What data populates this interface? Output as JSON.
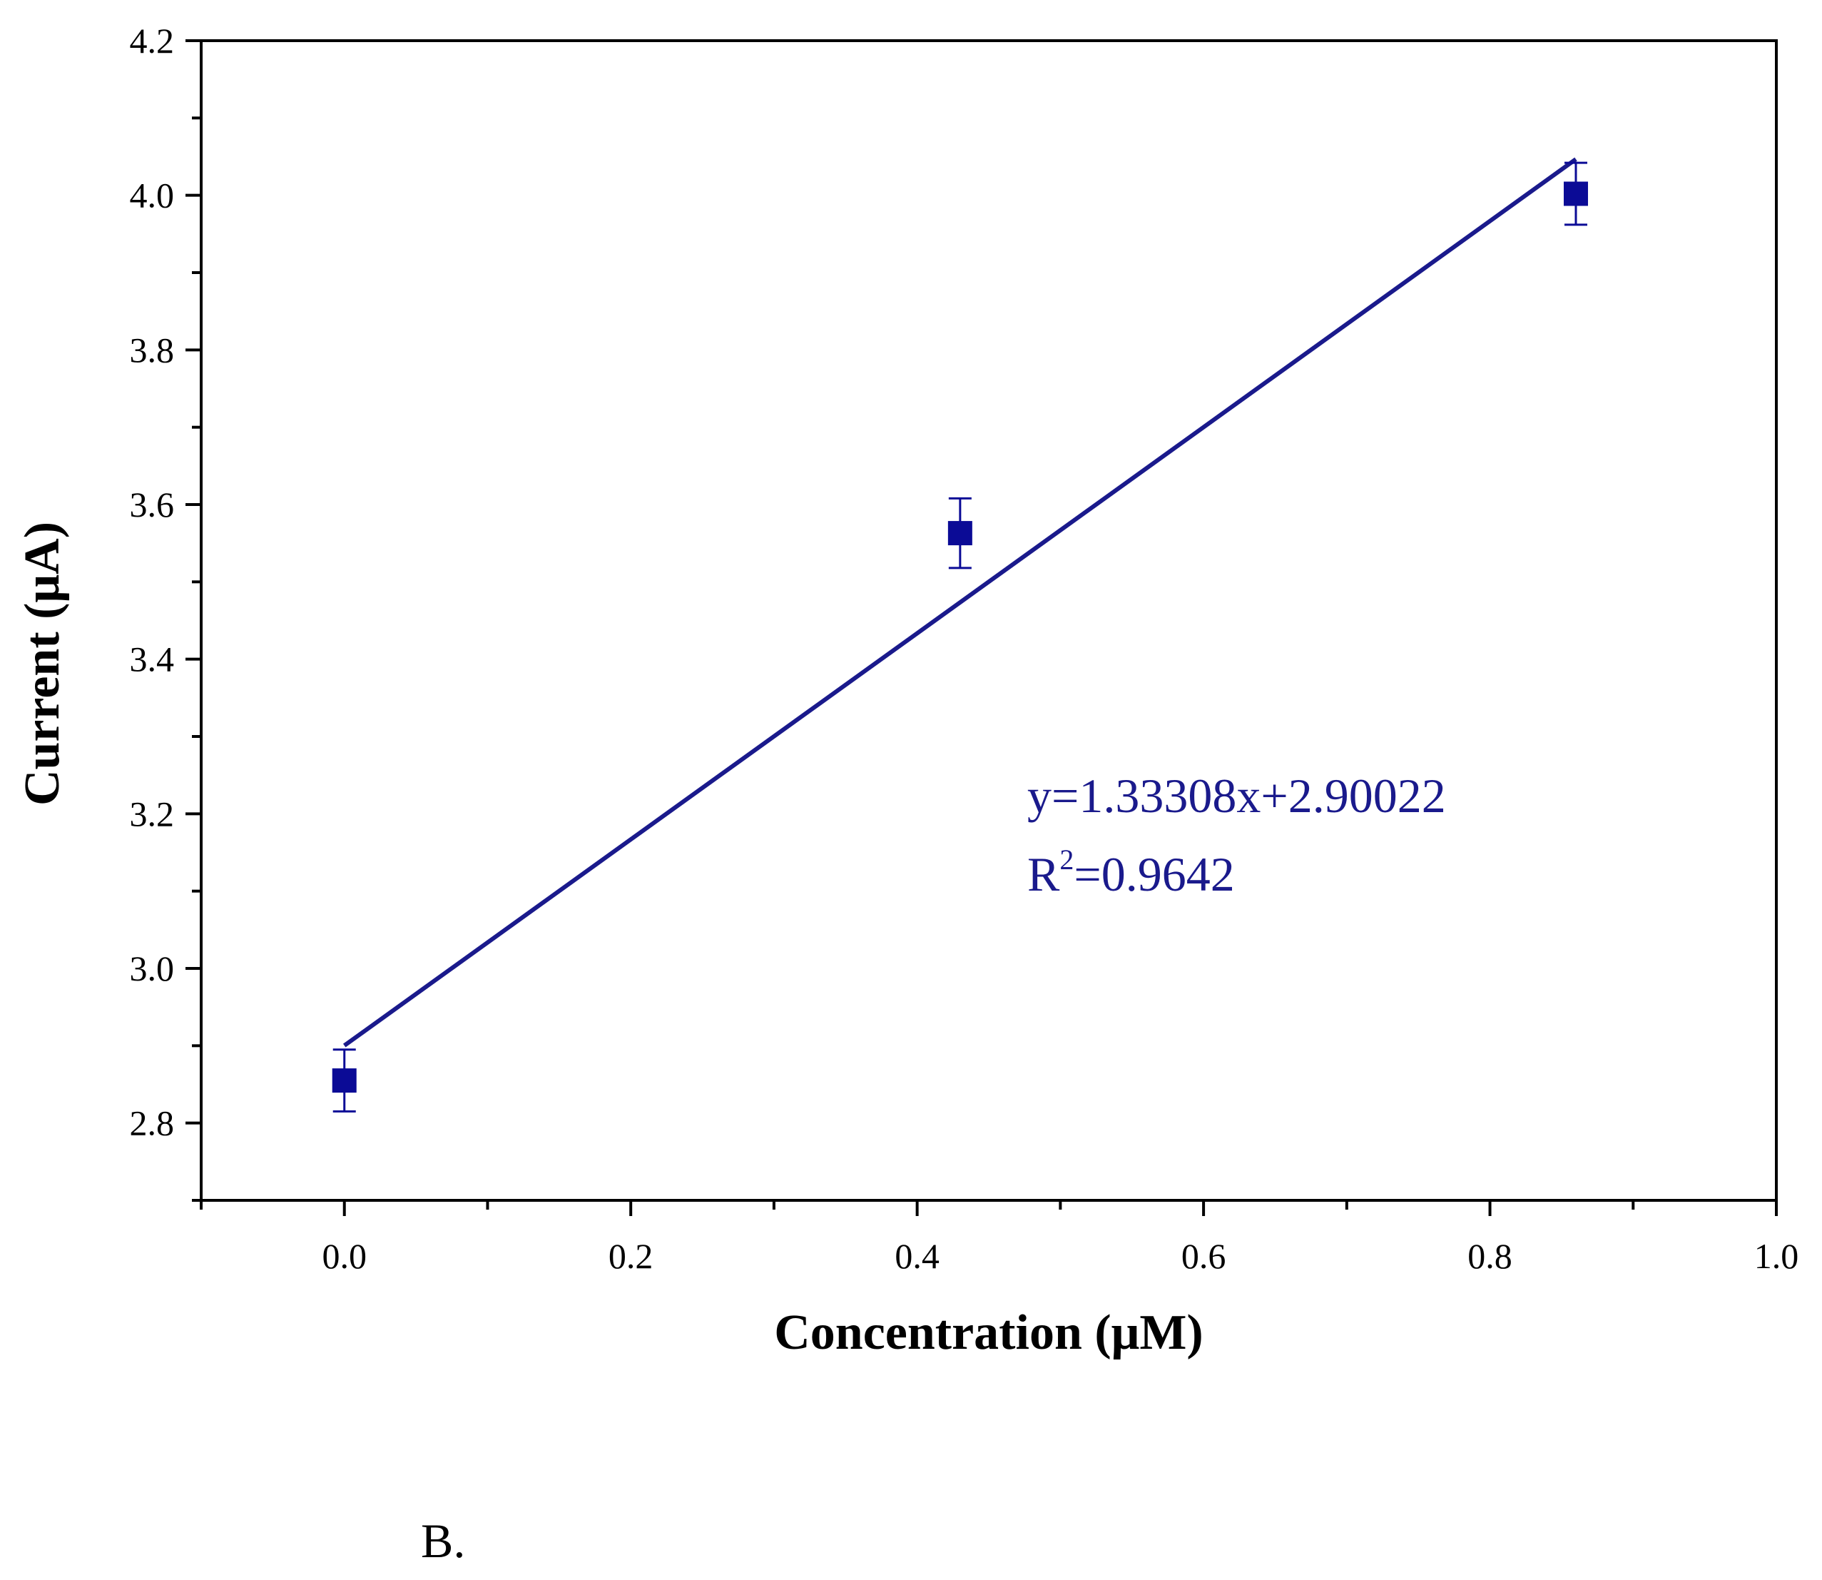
{
  "chart_data": {
    "type": "scatter",
    "xlabel": "Concentration (μM)",
    "ylabel": "Current (μA)",
    "xlim": [
      -0.1,
      1.0
    ],
    "ylim": [
      2.7,
      4.2
    ],
    "x_ticks": [
      0.0,
      0.2,
      0.4,
      0.6,
      0.8,
      1.0
    ],
    "x_tick_labels": [
      "0.0",
      "0.2",
      "0.4",
      "0.6",
      "0.8",
      "1.0"
    ],
    "x_minor_ticks": [
      -0.1,
      0.1,
      0.3,
      0.5,
      0.7,
      0.9
    ],
    "y_ticks": [
      2.8,
      3.0,
      3.2,
      3.4,
      3.6,
      3.8,
      4.0,
      4.2
    ],
    "y_tick_labels": [
      "2.8",
      "3.0",
      "3.2",
      "3.4",
      "3.6",
      "3.8",
      "4.0",
      "4.2"
    ],
    "y_minor_ticks": [
      2.7,
      2.9,
      3.1,
      3.3,
      3.5,
      3.7,
      3.9,
      4.1
    ],
    "grid": false,
    "series": [
      {
        "points": [
          {
            "x": 0.0,
            "y": 2.855,
            "err": 0.04
          },
          {
            "x": 0.43,
            "y": 3.563,
            "err": 0.045
          },
          {
            "x": 0.86,
            "y": 4.002,
            "err": 0.04
          }
        ],
        "marker": "square",
        "color": "#0b0b96"
      }
    ],
    "fit_line": {
      "slope": 1.33308,
      "intercept": 2.90022,
      "x_range": [
        0.0,
        0.86
      ],
      "color": "#1a1a8c"
    },
    "annotations": {
      "equation": "y=1.33308x+2.90022",
      "r2_prefix": "R",
      "r2_exponent": "2",
      "r2_value": "=0.9642"
    }
  },
  "panel_label": "B."
}
